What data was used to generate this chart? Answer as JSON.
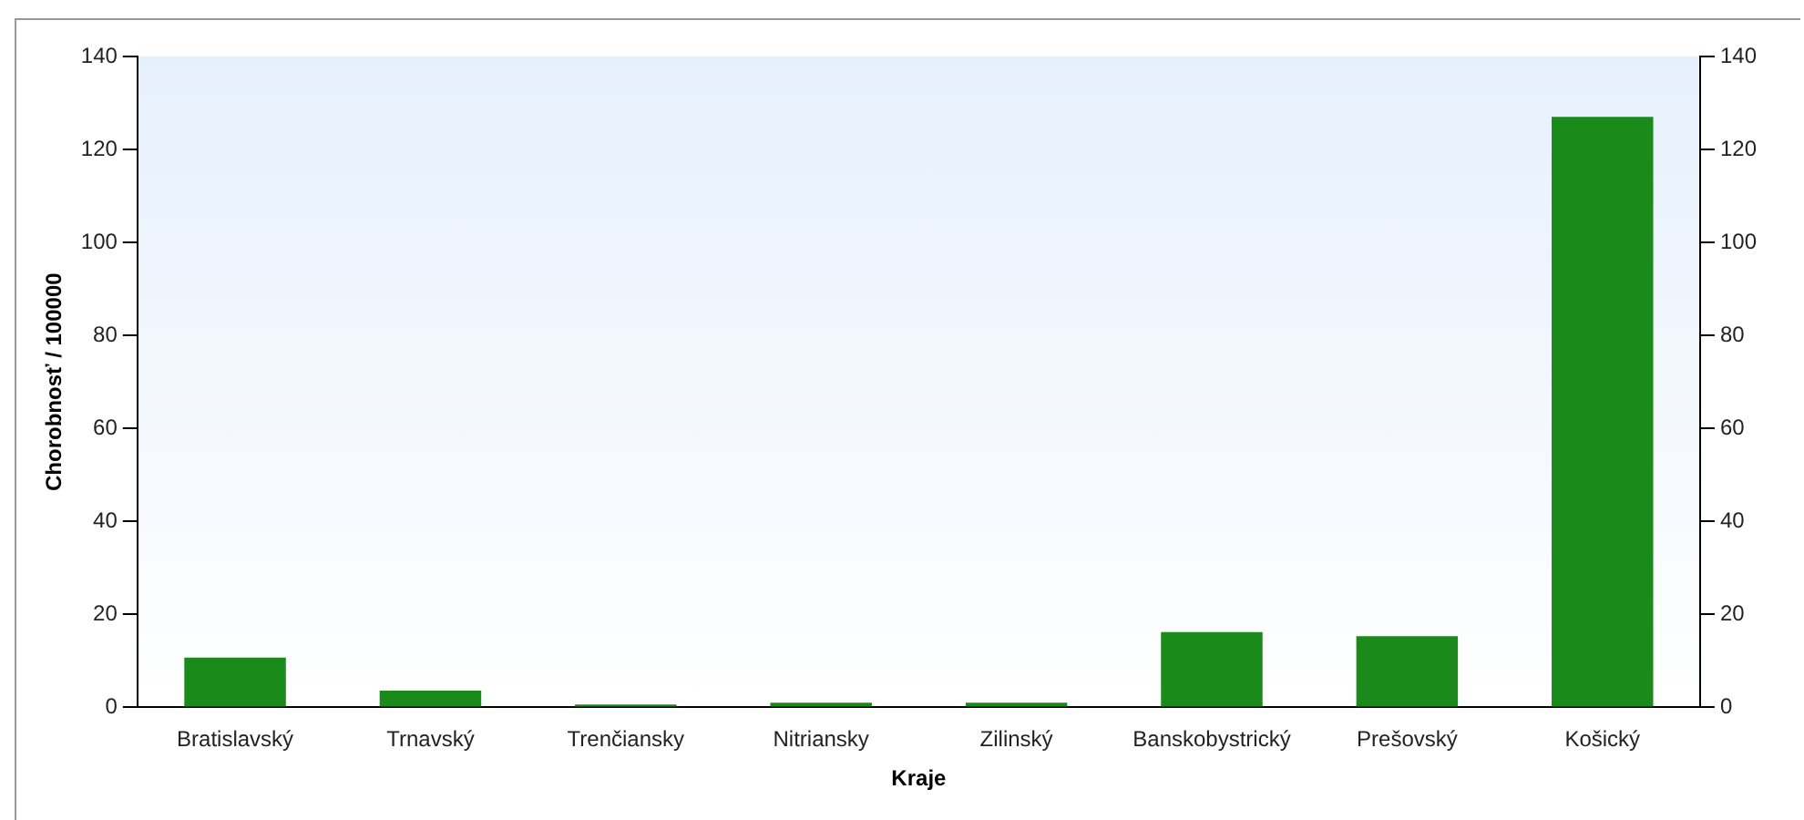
{
  "chart_data": {
    "type": "bar",
    "xlabel": "Kraje",
    "ylabel": "Chorobnosť / 100000",
    "categories": [
      "Bratislavský",
      "Trnavský",
      "Trenčiansky",
      "Nitriansky",
      "Zilinský",
      "Banskobystrický",
      "Prešovský",
      "Košický"
    ],
    "values": [
      10.7,
      3.6,
      0.6,
      1,
      1,
      16.2,
      15.3,
      127
    ],
    "color": "#1a8a1a",
    "ylim": [
      0,
      140
    ],
    "yticks": [
      0,
      20,
      40,
      60,
      80,
      100,
      120,
      140
    ],
    "y2lim": [
      0,
      140
    ],
    "y2ticks": [
      0,
      20,
      40,
      60,
      80,
      100,
      120,
      140
    ],
    "grid": false,
    "legend": false
  }
}
